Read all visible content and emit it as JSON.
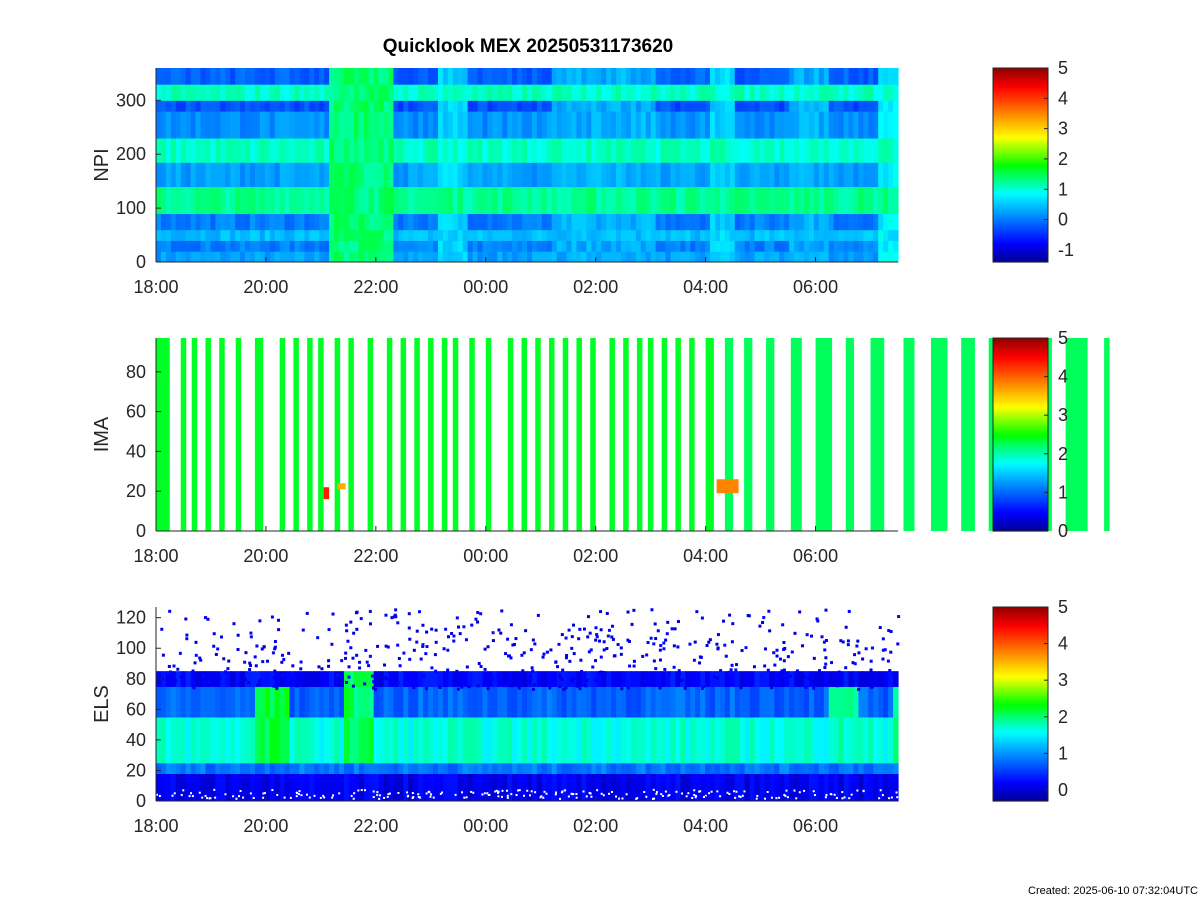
{
  "title": "Quicklook MEX 20250531173620",
  "footer": "Created: 2025-06-10 07:32:04UTC",
  "chart_data": [
    {
      "type": "heatmap",
      "ylabel": "NPI",
      "xticks": [
        "18:00",
        "20:00",
        "22:00",
        "00:00",
        "02:00",
        "04:00",
        "06:00"
      ],
      "yticks": [
        0,
        100,
        200,
        300
      ],
      "ylim": [
        0,
        360
      ],
      "colorbar": {
        "ticks": [
          -1,
          0,
          1,
          2,
          3,
          4,
          5
        ],
        "range": [
          -1.4,
          5
        ]
      },
      "bands": [
        {
          "y": [
            0,
            20
          ],
          "v": 0.3
        },
        {
          "y": [
            20,
            40
          ],
          "v": 0.1
        },
        {
          "y": [
            40,
            60
          ],
          "v": 0.5
        },
        {
          "y": [
            60,
            90
          ],
          "v": 0.1
        },
        {
          "y": [
            90,
            140
          ],
          "v": 1.3
        },
        {
          "y": [
            140,
            185
          ],
          "v": 0.3
        },
        {
          "y": [
            185,
            230
          ],
          "v": 1.1
        },
        {
          "y": [
            230,
            280
          ],
          "v": 0.2
        },
        {
          "y": [
            280,
            300
          ],
          "v": -0.2
        },
        {
          "y": [
            300,
            330
          ],
          "v": 1.1
        },
        {
          "y": [
            330,
            360
          ],
          "v": -0.1
        }
      ],
      "events": [
        {
          "t": [
            3.1,
            4.3
          ],
          "v": 1.4
        },
        {
          "t": [
            5.1,
            5.6
          ],
          "v": 0.6
        },
        {
          "t": [
            7.2,
            9.0
          ],
          "v": 0.4
        },
        {
          "t": [
            10.0,
            10.5
          ],
          "v": 0.6
        },
        {
          "t": [
            11.5,
            12.2
          ],
          "v": 0.4
        },
        {
          "t": [
            13.1,
            13.8
          ],
          "v": 0.8
        },
        {
          "t": [
            15.3,
            16.1
          ],
          "v": 1.6
        },
        {
          "t": [
            18.8,
            19.3
          ],
          "v": 0.5
        }
      ]
    },
    {
      "type": "heatmap",
      "ylabel": "IMA",
      "xticks": [
        "18:00",
        "20:00",
        "22:00",
        "00:00",
        "02:00",
        "04:00",
        "06:00"
      ],
      "yticks": [
        0,
        20,
        40,
        60,
        80
      ],
      "ylim": [
        0,
        97
      ],
      "colorbar": {
        "ticks": [
          0,
          1,
          2,
          3,
          4,
          5
        ],
        "range": [
          0,
          5
        ]
      },
      "stripes": [
        {
          "t": [
            0.0,
            0.25
          ],
          "v": 2.4
        },
        {
          "t": [
            0.45,
            0.55
          ],
          "v": 2.4
        },
        {
          "t": [
            0.65,
            0.75
          ],
          "v": 2.4
        },
        {
          "t": [
            0.9,
            1.0
          ],
          "v": 2.4
        },
        {
          "t": [
            1.15,
            1.25
          ],
          "v": 2.4
        },
        {
          "t": [
            1.45,
            1.55
          ],
          "v": 2.4
        },
        {
          "t": [
            1.8,
            1.95
          ],
          "v": 2.4
        },
        {
          "t": [
            2.25,
            2.35
          ],
          "v": 2.4
        },
        {
          "t": [
            2.5,
            2.6
          ],
          "v": 2.4
        },
        {
          "t": [
            2.75,
            2.85
          ],
          "v": 2.4
        },
        {
          "t": [
            2.95,
            3.05
          ],
          "v": 2.4
        },
        {
          "t": [
            3.25,
            3.35
          ],
          "v": 2.4
        },
        {
          "t": [
            3.5,
            3.6
          ],
          "v": 2.4
        },
        {
          "t": [
            3.85,
            3.95
          ],
          "v": 2.4
        },
        {
          "t": [
            4.2,
            4.3
          ],
          "v": 2.4
        },
        {
          "t": [
            4.45,
            4.55
          ],
          "v": 2.4
        },
        {
          "t": [
            4.7,
            4.8
          ],
          "v": 2.4
        },
        {
          "t": [
            4.95,
            5.05
          ],
          "v": 2.4
        },
        {
          "t": [
            5.2,
            5.3
          ],
          "v": 2.4
        },
        {
          "t": [
            5.4,
            5.5
          ],
          "v": 2.4
        },
        {
          "t": [
            5.7,
            5.8
          ],
          "v": 2.4
        },
        {
          "t": [
            6.0,
            6.1
          ],
          "v": 2.4
        },
        {
          "t": [
            6.4,
            6.5
          ],
          "v": 2.4
        },
        {
          "t": [
            6.65,
            6.75
          ],
          "v": 2.4
        },
        {
          "t": [
            6.9,
            7.0
          ],
          "v": 2.4
        },
        {
          "t": [
            7.15,
            7.25
          ],
          "v": 2.4
        },
        {
          "t": [
            7.4,
            7.5
          ],
          "v": 2.4
        },
        {
          "t": [
            7.65,
            7.75
          ],
          "v": 2.4
        },
        {
          "t": [
            7.9,
            8.0
          ],
          "v": 2.4
        },
        {
          "t": [
            8.25,
            8.35
          ],
          "v": 2.4
        },
        {
          "t": [
            8.5,
            8.6
          ],
          "v": 2.4
        },
        {
          "t": [
            8.75,
            8.85
          ],
          "v": 2.4
        },
        {
          "t": [
            8.95,
            9.05
          ],
          "v": 2.4
        },
        {
          "t": [
            9.2,
            9.3
          ],
          "v": 2.4
        },
        {
          "t": [
            9.45,
            9.55
          ],
          "v": 2.4
        },
        {
          "t": [
            9.7,
            9.8
          ],
          "v": 2.4
        },
        {
          "t": [
            10.0,
            10.15
          ],
          "v": 2.4
        },
        {
          "t": [
            10.35,
            10.5
          ],
          "v": 2.25
        },
        {
          "t": [
            10.7,
            10.85
          ],
          "v": 2.25
        },
        {
          "t": [
            11.1,
            11.25
          ],
          "v": 2.25
        },
        {
          "t": [
            11.55,
            11.75
          ],
          "v": 2.25
        },
        {
          "t": [
            12.0,
            12.3
          ],
          "v": 2.25
        },
        {
          "t": [
            12.55,
            12.7
          ],
          "v": 2.25
        },
        {
          "t": [
            13.0,
            13.25
          ],
          "v": 2.25
        },
        {
          "t": [
            13.6,
            13.8
          ],
          "v": 2.25
        },
        {
          "t": [
            14.1,
            14.4
          ],
          "v": 2.25
        },
        {
          "t": [
            14.65,
            14.9
          ],
          "v": 2.25
        },
        {
          "t": [
            15.15,
            15.3
          ],
          "v": 2.25
        },
        {
          "t": [
            15.55,
            15.75
          ],
          "v": 2.25
        },
        {
          "t": [
            16.05,
            16.3
          ],
          "v": 2.25
        },
        {
          "t": [
            16.55,
            16.95
          ],
          "v": 2.25
        },
        {
          "t": [
            17.25,
            17.35
          ],
          "v": 2.25
        }
      ],
      "hotspots": [
        {
          "t": [
            3.05,
            3.15
          ],
          "y": [
            16,
            22
          ],
          "v": 4.3
        },
        {
          "t": [
            3.3,
            3.45
          ],
          "y": [
            21,
            24
          ],
          "v": 3.6
        },
        {
          "t": [
            10.2,
            10.6
          ],
          "y": [
            19,
            26
          ],
          "v": 3.8
        }
      ]
    },
    {
      "type": "heatmap",
      "ylabel": "ELS",
      "xticks": [
        "18:00",
        "20:00",
        "22:00",
        "00:00",
        "02:00",
        "04:00",
        "06:00"
      ],
      "yticks": [
        0,
        20,
        40,
        60,
        80,
        100,
        120
      ],
      "ylim": [
        0,
        127
      ],
      "colorbar": {
        "ticks": [
          0,
          1,
          2,
          3,
          4,
          5
        ],
        "range": [
          -0.3,
          5
        ]
      },
      "bands": [
        {
          "y": [
            0,
            18
          ],
          "v": 0.2
        },
        {
          "y": [
            18,
            25
          ],
          "v": 0.9
        },
        {
          "y": [
            25,
            55
          ],
          "v": 1.7
        },
        {
          "y": [
            55,
            75
          ],
          "v": 0.8
        },
        {
          "y": [
            75,
            85
          ],
          "v": 0.3
        }
      ],
      "noise_above": 80,
      "events": [
        {
          "t": [
            1.8,
            2.4
          ],
          "y": [
            50,
            65
          ],
          "v": 2.2
        },
        {
          "t": [
            3.4,
            3.9
          ],
          "y": [
            45,
            78
          ],
          "v": 2.1
        },
        {
          "t": [
            12.2,
            12.7
          ],
          "y": [
            40,
            75
          ],
          "v": 1.8
        },
        {
          "t": [
            13.4,
            13.9
          ],
          "y": [
            45,
            75
          ],
          "v": 2.0
        }
      ]
    }
  ]
}
